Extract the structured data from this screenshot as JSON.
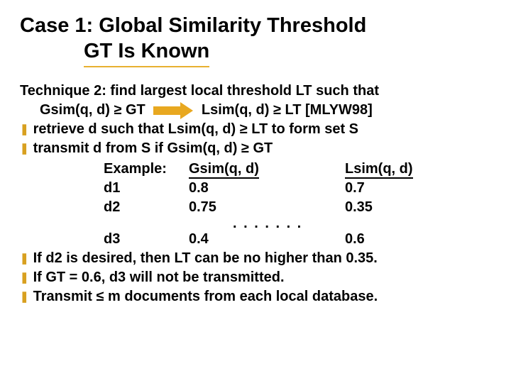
{
  "title": {
    "line1": "Case 1: Global Similarity Threshold",
    "line2": "GT Is Known"
  },
  "lines": {
    "tech_a": "Technique 2: find largest local threshold  LT  such that",
    "tech_b_left": "Gsim(q, d) ≥ GT",
    "tech_b_right": "Lsim(q, d) ≥  LT   [MLYW98]",
    "bul1": "retrieve  d  such that  Lsim(q, d) ≥  LT  to form set  S",
    "bul2": "transmit  d  from  S  if  Gsim(q, d) ≥ GT",
    "example": "Example:",
    "h_g": "Gsim(q, d)",
    "h_l": "Lsim(q, d)",
    "dots": ". . . . . . .",
    "bul3": "If d2 is desired, then LT can be no higher than 0.35.",
    "bul4": "If GT = 0.6, d3 will not be transmitted.",
    "bul5": "Transmit ≤ m documents from each local database."
  },
  "rows": [
    {
      "label": "d1",
      "g": "0.8",
      "l": "0.7"
    },
    {
      "label": "d2",
      "g": "0.75",
      "l": "0.35"
    },
    {
      "label": "d3",
      "g": "0.4",
      "l": "0.6"
    }
  ],
  "colors": {
    "accent": "#e8a820",
    "text": "#000000",
    "bg": "#ffffff"
  }
}
